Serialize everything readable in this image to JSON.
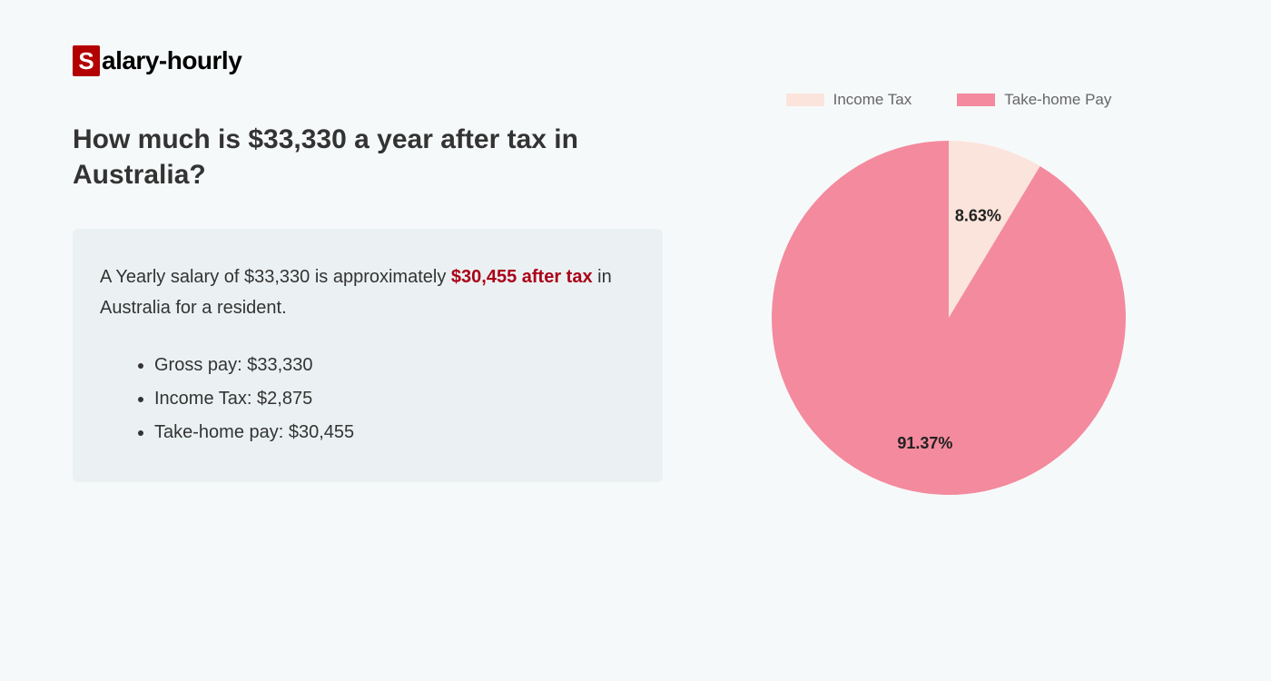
{
  "logo": {
    "box_letter": "S",
    "rest": "alary-hourly",
    "box_bg": "#b30000",
    "box_fg": "#ffffff"
  },
  "title": "How much is $33,330 a year after tax in Australia?",
  "summary": {
    "prefix": "A Yearly salary of $33,330 is approximately ",
    "highlight": "$30,455 after tax",
    "suffix": " in Australia for a resident.",
    "highlight_color": "#aa0018",
    "box_bg": "#ebf1f2",
    "items": [
      "Gross pay: $33,330",
      "Income Tax: $2,875",
      "Take-home pay: $30,455"
    ]
  },
  "chart": {
    "type": "pie",
    "background_color": "#f6f9fa",
    "radius": 195,
    "label_fontsize": 18,
    "label_fontweight": 700,
    "label_color": "#222222",
    "legend_fontsize": 17,
    "legend_color": "#666666",
    "legend_swatch_w": 42,
    "legend_swatch_h": 14,
    "start_angle_deg": -90,
    "slices": [
      {
        "name": "Income Tax",
        "value": 8.63,
        "label": "8.63%",
        "color": "#fbe4db"
      },
      {
        "name": "Take-home Pay",
        "value": 91.37,
        "label": "91.37%",
        "color": "#f48a9d"
      }
    ]
  }
}
